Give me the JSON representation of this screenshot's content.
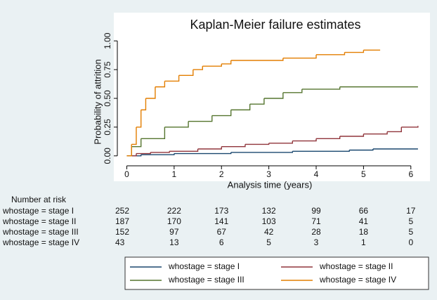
{
  "chart_data": {
    "type": "step",
    "title": "Kaplan-Meier failure estimates",
    "x_label": "Analysis time (years)",
    "y_label": "Probability of attrition",
    "xlim": [
      -0.2,
      6.3
    ],
    "ylim": [
      -0.05,
      1.05
    ],
    "xticks": [
      0,
      1,
      2,
      3,
      4,
      5,
      6
    ],
    "yticks": [
      {
        "value": 0,
        "label": "0.00"
      },
      {
        "value": 0.25,
        "label": "0.25"
      },
      {
        "value": 0.5,
        "label": "0.50"
      },
      {
        "value": 0.75,
        "label": "0.75"
      },
      {
        "value": 1,
        "label": "1.00"
      }
    ],
    "series": [
      {
        "name": "whostage = stage I",
        "color": "#1a476f",
        "x": [
          0,
          0.3,
          1.0,
          2.2,
          3.5,
          4.7,
          5.2,
          6.15
        ],
        "values": [
          0,
          0.01,
          0.02,
          0.03,
          0.04,
          0.05,
          0.06,
          0.06
        ]
      },
      {
        "name": "whostage = stage II",
        "color": "#90353b",
        "x": [
          0,
          0.2,
          0.5,
          0.9,
          1.5,
          2.0,
          2.5,
          3.0,
          3.5,
          4.0,
          4.5,
          5.0,
          5.5,
          5.8,
          6.15
        ],
        "values": [
          0,
          0.02,
          0.03,
          0.04,
          0.06,
          0.08,
          0.1,
          0.11,
          0.13,
          0.15,
          0.17,
          0.19,
          0.21,
          0.25,
          0.26
        ]
      },
      {
        "name": "whostage = stage III",
        "color": "#55752f",
        "x": [
          0,
          0.1,
          0.3,
          0.8,
          1.3,
          1.8,
          2.2,
          2.6,
          2.9,
          3.3,
          3.7,
          4.5,
          6.15
        ],
        "values": [
          0,
          0.08,
          0.15,
          0.25,
          0.3,
          0.35,
          0.4,
          0.45,
          0.5,
          0.55,
          0.58,
          0.6,
          0.6
        ]
      },
      {
        "name": "whostage = stage IV",
        "color": "#e37e00",
        "x": [
          0,
          0.1,
          0.2,
          0.3,
          0.4,
          0.6,
          0.8,
          1.1,
          1.4,
          1.6,
          2.0,
          2.2,
          3.3,
          4.0,
          4.6,
          5.0,
          5.35
        ],
        "values": [
          0,
          0.1,
          0.25,
          0.4,
          0.5,
          0.6,
          0.65,
          0.7,
          0.75,
          0.78,
          0.8,
          0.83,
          0.85,
          0.88,
          0.9,
          0.92,
          0.92
        ]
      }
    ]
  },
  "risk_table": {
    "title": "Number at risk",
    "rows": [
      {
        "label": "whostage = stage I",
        "counts": [
          252,
          222,
          173,
          132,
          99,
          66,
          17
        ]
      },
      {
        "label": "whostage = stage II",
        "counts": [
          187,
          170,
          141,
          103,
          71,
          41,
          5
        ]
      },
      {
        "label": "whostage = stage III",
        "counts": [
          152,
          97,
          67,
          42,
          28,
          18,
          5
        ]
      },
      {
        "label": "whostage = stage IV",
        "counts": [
          43,
          13,
          6,
          5,
          3,
          1,
          0
        ]
      }
    ]
  }
}
